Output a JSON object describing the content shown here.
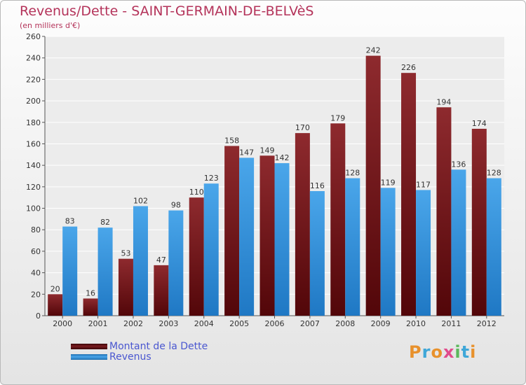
{
  "header": {
    "title": "Revenus/Dette - SAINT-GERMAIN-DE-BELVèS",
    "subtitle": "(en milliers d'€)"
  },
  "chart_data": {
    "type": "bar",
    "categories": [
      "2000",
      "2001",
      "2002",
      "2003",
      "2004",
      "2005",
      "2006",
      "2007",
      "2008",
      "2009",
      "2010",
      "2011",
      "2012"
    ],
    "series": [
      {
        "name": "Montant de la Dette",
        "color": "#7a1b1f",
        "values": [
          20,
          16,
          53,
          47,
          110,
          158,
          149,
          170,
          179,
          242,
          226,
          194,
          174
        ]
      },
      {
        "name": "Revenus",
        "color": "#3e97dc",
        "values": [
          83,
          82,
          102,
          98,
          123,
          147,
          142,
          116,
          128,
          119,
          117,
          136,
          128
        ]
      }
    ],
    "ylim": [
      0,
      260
    ],
    "yticks": [
      0,
      20,
      40,
      60,
      80,
      100,
      120,
      140,
      160,
      180,
      200,
      220,
      240,
      260
    ],
    "grid": true,
    "legend_position": "bottom-left",
    "show_data_labels": true
  },
  "legend": {
    "items": [
      {
        "label": "Montant de la Dette",
        "color": "#7a1b1f"
      },
      {
        "label": "Revenus",
        "color": "#3e97dc"
      }
    ]
  },
  "brand": {
    "logo_text": "Proxiti",
    "colors": [
      "#e8912c",
      "#3fa7d8",
      "#e8912c",
      "#e04b8c",
      "#5cb85c",
      "#3fa7d8",
      "#e8912c"
    ]
  }
}
